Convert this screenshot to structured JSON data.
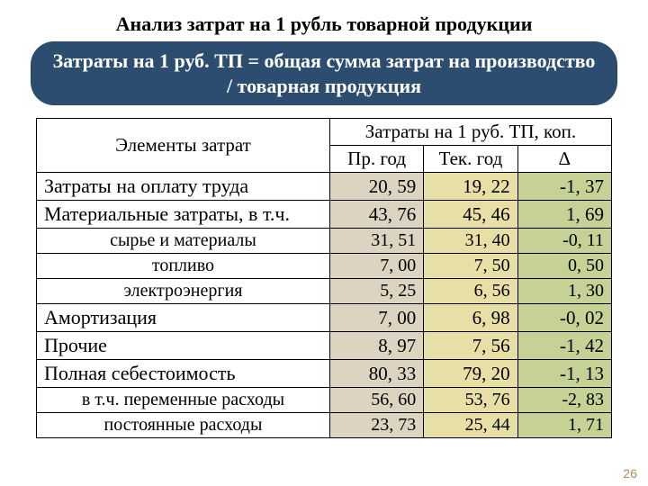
{
  "title": "Анализ затрат на 1 рубль товарной продукции",
  "formula": "Затраты на 1 руб. ТП = общая сумма затрат на производство / товарная продукция",
  "table": {
    "header": {
      "elements": "Элементы затрат",
      "group": "Затраты на 1 руб. ТП, коп.",
      "prev": "Пр. год",
      "curr": "Тек. год",
      "delta": "∆"
    },
    "columns": {
      "colors": {
        "prev_bg": "#dcd4c0",
        "curr_bg": "#e7dfa5",
        "delta_bg": "#c6d196"
      }
    },
    "rows": [
      {
        "type": "main",
        "name": "Затраты на оплату труда",
        "prev": "20, 59",
        "curr": "19, 22",
        "delta": "-1, 37"
      },
      {
        "type": "main",
        "name": "Материальные затраты, в т.ч.",
        "prev": "43, 76",
        "curr": "45, 46",
        "delta": "1, 69"
      },
      {
        "type": "sub",
        "name": "сырье и материалы",
        "prev": "31, 51",
        "curr": "31, 40",
        "delta": "-0, 11"
      },
      {
        "type": "sub",
        "name": "топливо",
        "prev": "7, 00",
        "curr": "7, 50",
        "delta": "0, 50"
      },
      {
        "type": "sub",
        "name": "электроэнергия",
        "prev": "5, 25",
        "curr": "6, 56",
        "delta": "1, 30"
      },
      {
        "type": "main",
        "name": "Амортизация",
        "prev": "7, 00",
        "curr": "6, 98",
        "delta": "-0, 02"
      },
      {
        "type": "main",
        "name": "Прочие",
        "prev": "8, 97",
        "curr": "7, 56",
        "delta": "-1, 42"
      },
      {
        "type": "main",
        "name": "Полная себестоимость",
        "prev": "80, 33",
        "curr": "79, 20",
        "delta": "-1, 13"
      },
      {
        "type": "sub",
        "name": "в т.ч. переменные расходы",
        "prev": "56, 60",
        "curr": "53, 76",
        "delta": "-2, 83"
      },
      {
        "type": "sub",
        "name": "постоянные расходы",
        "prev": "23, 73",
        "curr": "25, 44",
        "delta": "1, 71"
      }
    ]
  },
  "page_number": "26"
}
